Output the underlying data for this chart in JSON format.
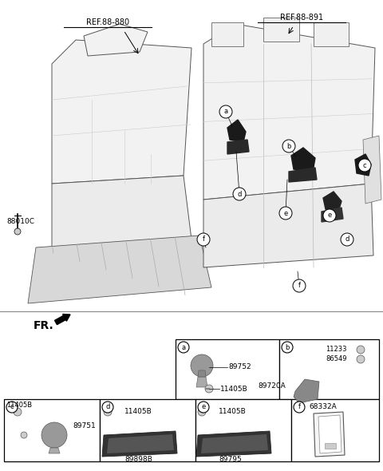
{
  "background_color": "#ffffff",
  "fig_width": 4.8,
  "fig_height": 5.9,
  "dpi": 100,
  "ref1_text": "REF.88-880",
  "ref2_text": "REF.88-891",
  "side_label": "88010C",
  "fr_label": "FR.",
  "cell_labels": [
    "a",
    "b",
    "c",
    "d",
    "e",
    "f"
  ],
  "parts": {
    "a": [
      "89752",
      "11405B"
    ],
    "b": [
      "11233",
      "86549",
      "89720A"
    ],
    "c": [
      "11405B",
      "89751"
    ],
    "d": [
      "11405B",
      "89898B"
    ],
    "e": [
      "11405B",
      "89795"
    ],
    "f": [
      "68332A"
    ]
  }
}
